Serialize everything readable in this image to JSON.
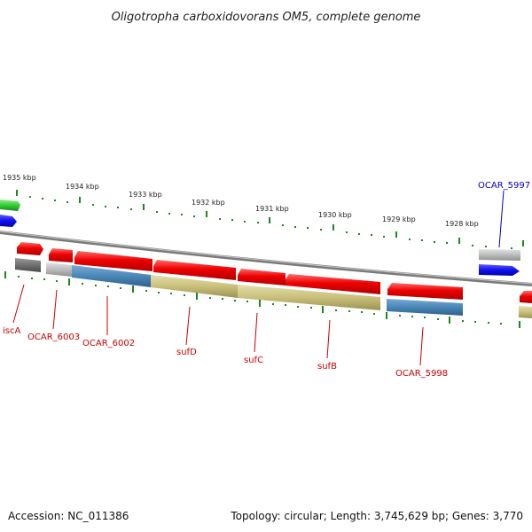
{
  "title": "Oligotropha carboxidovorans OM5, complete genome",
  "ruler_labels": [
    "1935 kbp",
    "1934 kbp",
    "1933 kbp",
    "1932 kbp",
    "1931 kbp",
    "1930 kbp",
    "1929 kbp",
    "1928 kbp"
  ],
  "gene_labels": [
    "OCAR_5997",
    "iscA",
    "OCAR_6003",
    "OCAR_6002",
    "sufD",
    "sufC",
    "sufB",
    "OCAR_5998"
  ],
  "footer": {
    "accession": "Accession: NC_011386",
    "stats": "Topology: circular; Length: 3,745,629 bp; Genes: 3,770"
  },
  "colors": {
    "backbone": "#8a8a8a",
    "ruler_green": "#1a8a1a",
    "red_feature": "#ee0000",
    "gray_feature": "#b8b8b8",
    "dark_gray_feature": "#707070",
    "blue_feature": "#4a86b8",
    "olive_feature": "#c8c07a",
    "bright_blue_feature": "#1010ee",
    "green_feature": "#33cc33",
    "label_red": "#cc0000",
    "label_blue": "#0000cc"
  }
}
